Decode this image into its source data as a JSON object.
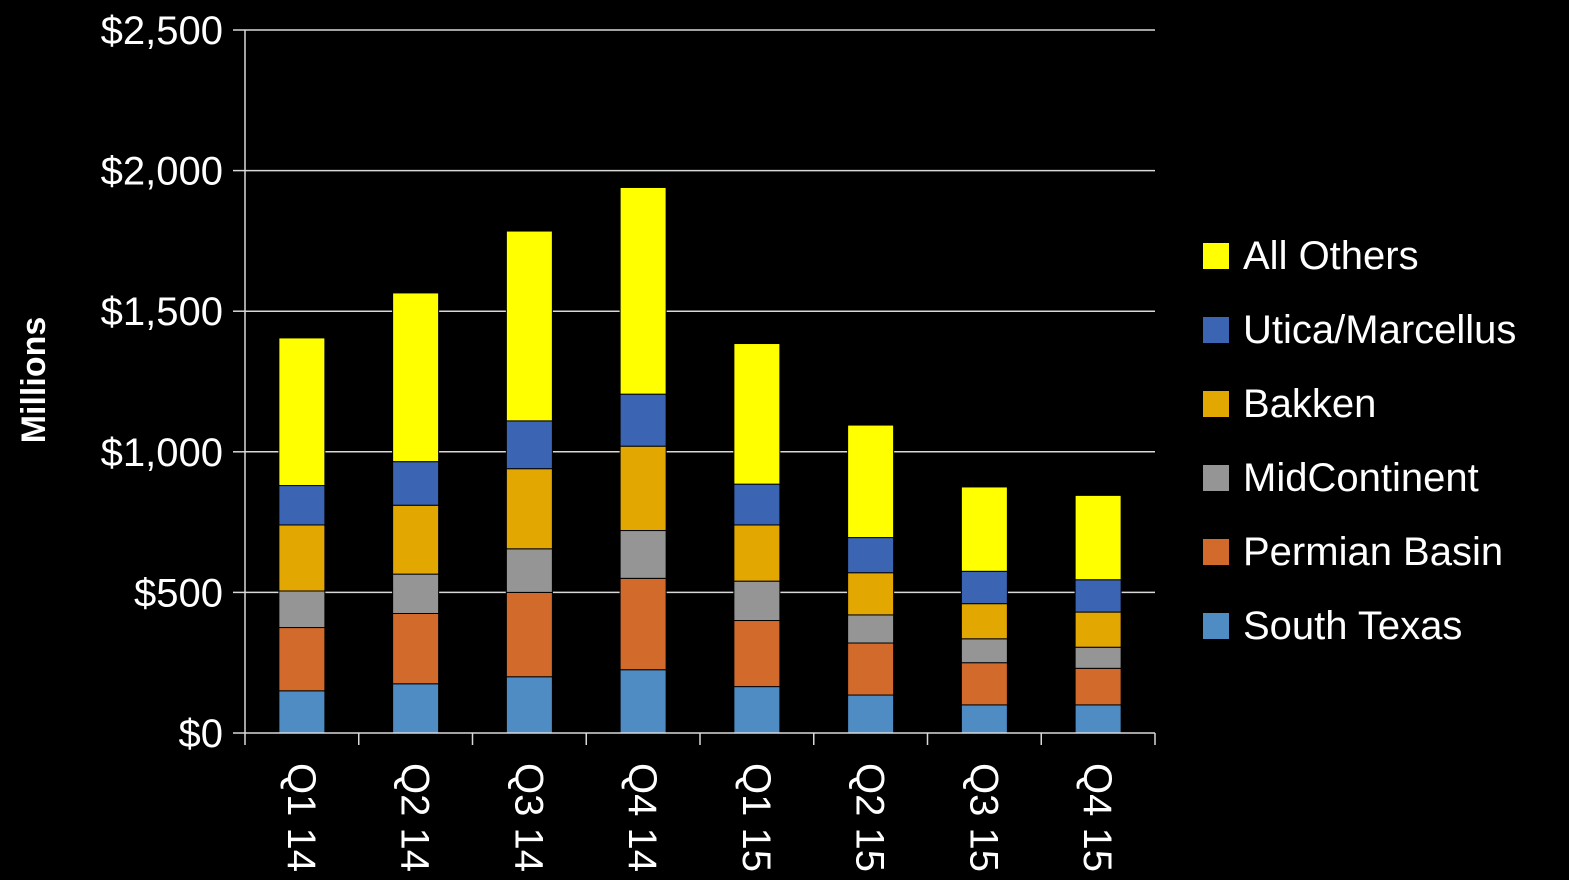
{
  "chart_data": {
    "type": "bar",
    "stacked": true,
    "title": "",
    "xlabel": "",
    "ylabel": "Millions",
    "ylim": [
      0,
      2500
    ],
    "y_ticks": [
      0,
      500,
      1000,
      1500,
      2000,
      2500
    ],
    "y_tick_labels": [
      "$0",
      "$500",
      "$1,000",
      "$1,500",
      "$2,000",
      "$2,500"
    ],
    "categories": [
      "Q1 14",
      "Q2 14",
      "Q3 14",
      "Q4 14",
      "Q1 15",
      "Q2 15",
      "Q3 15",
      "Q4 15"
    ],
    "grid": true,
    "legend_position": "right",
    "series": [
      {
        "name": "South Texas",
        "color": "#4f8cc4",
        "values": [
          150,
          175,
          200,
          225,
          165,
          135,
          100,
          100
        ]
      },
      {
        "name": "Permian Basin",
        "color": "#d26a2c",
        "values": [
          225,
          250,
          300,
          325,
          235,
          185,
          150,
          130
        ]
      },
      {
        "name": "MidContinent",
        "color": "#959595",
        "values": [
          130,
          140,
          155,
          170,
          140,
          100,
          85,
          75
        ]
      },
      {
        "name": "Bakken",
        "color": "#e2a700",
        "values": [
          235,
          245,
          285,
          300,
          200,
          150,
          125,
          125
        ]
      },
      {
        "name": "Utica/Marcellus",
        "color": "#3b64b3",
        "values": [
          140,
          155,
          170,
          185,
          145,
          125,
          115,
          115
        ]
      },
      {
        "name": "All Others",
        "color": "#ffff00",
        "values": [
          525,
          600,
          675,
          735,
          500,
          400,
          300,
          300
        ]
      }
    ],
    "legend_order": [
      "All Others",
      "Utica/Marcellus",
      "Bakken",
      "MidContinent",
      "Permian Basin",
      "South Texas"
    ]
  }
}
